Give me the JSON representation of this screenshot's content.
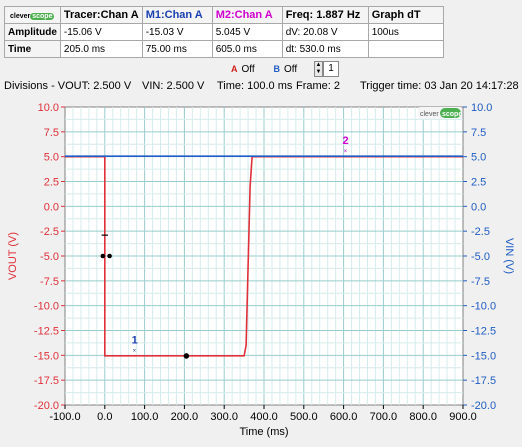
{
  "table": {
    "logo": {
      "left": "clever",
      "right": "scope"
    },
    "headers": [
      "Tracer:Chan A",
      "M1:Chan A",
      "M2:Chan A",
      "Freq: 1.887 Hz",
      "Graph dT"
    ],
    "header_colors": [
      "#000000",
      "#1a3fb0",
      "#d000d0",
      "#000000",
      "#000000"
    ],
    "rows": [
      {
        "label": "Amplitude",
        "cells": [
          "-15.06 V",
          "-15.03 V",
          "5.045 V",
          "dV: 20.08 V",
          "100us"
        ]
      },
      {
        "label": "Time",
        "cells": [
          "205.0 ms",
          "75.00 ms",
          "605.0 ms",
          "dt:  530.0 ms",
          ""
        ]
      }
    ]
  },
  "toggles": {
    "a_label": "A",
    "a_state": "Off",
    "b_label": "B",
    "b_state": "Off",
    "frame_value": "1"
  },
  "status": {
    "divisions": "Divisions - VOUT: 2.500 V",
    "vin": "VIN: 2.500 V",
    "time": "Time: 100.0 ms",
    "frame": "Frame: 2",
    "trigger": "Trigger time: 03 Jan 20 14:17:28"
  },
  "chart_data": {
    "type": "line",
    "xlabel": "Time (ms)",
    "ylabel_left": "VOUT (V)",
    "ylabel_right": "VIN (V)",
    "xlim": [
      -100,
      900
    ],
    "ylim_left": [
      -20,
      10
    ],
    "ylim_right": [
      -20,
      10
    ],
    "x_ticks": [
      "-100.0",
      "0.0",
      "100.0",
      "200.0",
      "300.0",
      "400.0",
      "500.0",
      "600.0",
      "700.0",
      "800.0",
      "900.0"
    ],
    "y_ticks": [
      "10.0",
      "7.5",
      "5.0",
      "2.5",
      "0.0",
      "-2.5",
      "-5.0",
      "-7.5",
      "-10.0",
      "-12.5",
      "-15.0",
      "-17.5",
      "-20.0"
    ],
    "grid": true,
    "watermark": {
      "left": "clever",
      "right": "scope"
    },
    "colors": {
      "vout": "#e0303a",
      "vin": "#1f5cc4",
      "m1": "#1a3fb0",
      "m2": "#d000d0"
    },
    "series": [
      {
        "name": "VOUT",
        "axis": "left",
        "x": [
          -100,
          0,
          0,
          350,
          355,
          360,
          365,
          370,
          900
        ],
        "y": [
          5,
          5,
          -15.05,
          -15.05,
          -14,
          -6,
          2,
          5,
          5
        ]
      },
      {
        "name": "VIN",
        "axis": "right",
        "x": [
          -100,
          900
        ],
        "y": [
          5.05,
          5.05
        ]
      }
    ],
    "markers": [
      {
        "label": "1",
        "x": 75,
        "y": -15.03,
        "color": "#1a3fb0"
      },
      {
        "label": "2",
        "x": 605,
        "y": 5.045,
        "color": "#d000d0"
      }
    ],
    "tracer": {
      "x": 205,
      "y": -15.06
    }
  }
}
